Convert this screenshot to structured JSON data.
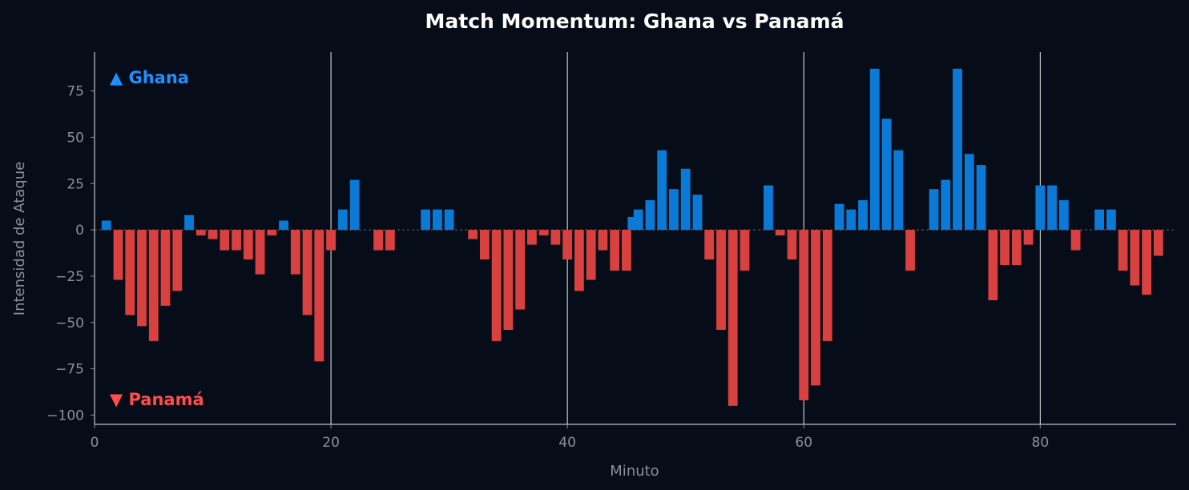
{
  "chart_data": {
    "type": "bar",
    "title": "Match Momentum: Ghana vs Panamá",
    "xlabel": "Minuto",
    "ylabel": "Intensidad de Ataque",
    "xlim": [
      0,
      91.5
    ],
    "ylim": [
      -105,
      96
    ],
    "xticks": [
      0,
      20,
      40,
      60,
      80
    ],
    "yticks": [
      75,
      50,
      25,
      0,
      -25,
      -50,
      -75,
      -100
    ],
    "vlines": [
      20,
      40,
      60,
      80
    ],
    "series": [
      {
        "name": "▲ Ghana",
        "color": "#0a7ad6",
        "label_color": "#1e90ff",
        "minutes": [
          1,
          8,
          16,
          21,
          22,
          28,
          29,
          30,
          45.5,
          46,
          47,
          48,
          49,
          50,
          51,
          57,
          63,
          64,
          65,
          66,
          67,
          68,
          71,
          72,
          73,
          74,
          75,
          80,
          81,
          82,
          85,
          86
        ],
        "values": [
          5,
          8,
          5,
          11,
          27,
          11,
          11,
          11,
          7,
          11,
          16,
          43,
          22,
          33,
          19,
          24,
          14,
          11,
          16,
          87,
          60,
          43,
          22,
          27,
          87,
          41,
          35,
          24,
          24,
          16,
          11,
          11
        ]
      },
      {
        "name": "▼ Panamá",
        "color": "#d94040",
        "label_color": "#ff4d4d",
        "minutes": [
          2,
          3,
          4,
          5,
          6,
          7,
          9,
          10,
          11,
          12,
          13,
          14,
          15,
          17,
          18,
          19,
          20,
          24,
          25,
          32,
          33,
          34,
          35,
          36,
          37,
          38,
          39,
          40,
          41,
          42,
          43,
          44,
          45,
          52,
          53,
          54,
          55,
          58,
          59,
          60,
          61,
          62,
          69,
          76,
          77,
          78,
          79,
          83,
          87,
          88,
          89,
          90
        ],
        "values": [
          -27,
          -46,
          -52,
          -60,
          -41,
          -33,
          -3,
          -5,
          -11,
          -11,
          -16,
          -24,
          -3,
          -24,
          -46,
          -71,
          -11,
          -11,
          -11,
          -5,
          -16,
          -60,
          -54,
          -43,
          -8,
          -3,
          -8,
          -16,
          -33,
          -27,
          -11,
          -22,
          -22,
          -16,
          -54,
          -95,
          -22,
          -3,
          -16,
          -92,
          -84,
          -60,
          -22,
          -38,
          -19,
          -19,
          -8,
          -11,
          -22,
          -30,
          -35,
          -14
        ]
      }
    ]
  }
}
